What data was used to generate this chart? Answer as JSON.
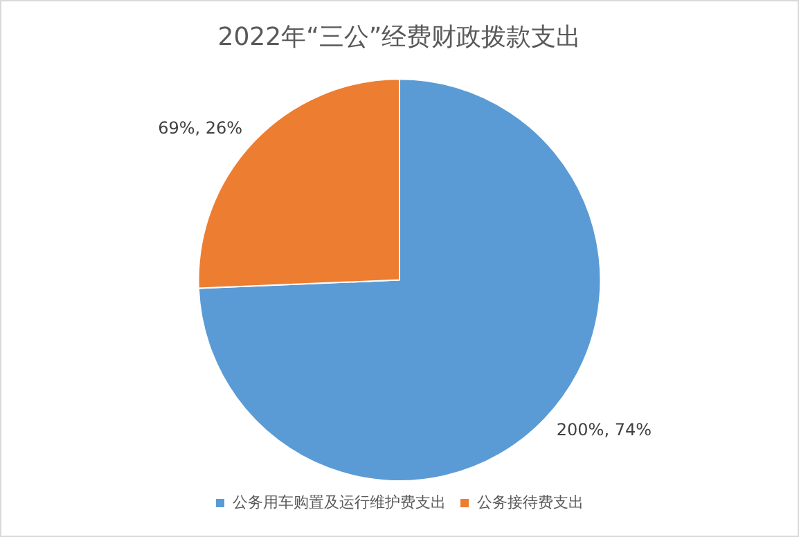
{
  "chart_data": {
    "type": "pie",
    "title": "2022年“三公”经费财政拨款支出",
    "categories": [
      "公务用车购置及运行维护费支出",
      "公务接待费支出"
    ],
    "values": [
      200,
      69
    ],
    "colors": [
      "#5b9bd5",
      "#ed7d31"
    ],
    "value_labels": [
      "200%, 74%",
      "69%, 26%"
    ],
    "legend": "bottom"
  }
}
